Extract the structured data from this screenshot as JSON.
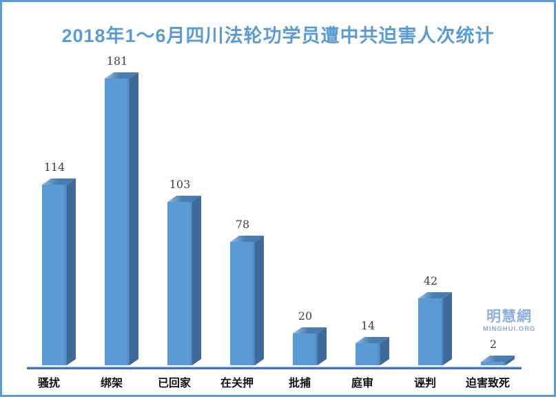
{
  "title_text": "2018年1～6月四川法轮功学员遭中共迫害人次统计",
  "watermark": {
    "cn": "明慧網",
    "en": "MINGHUI.ORG"
  },
  "colors": {
    "border": "#5B9BD5",
    "title": "#5B9BD5",
    "bar_front": "#5B9BD5",
    "bar_top": "#4A7CAF",
    "bar_side": "#3E6A99",
    "axis": "#4472C4",
    "value_label": "#404040",
    "category_label": "#111111",
    "watermark_cn": "#8FAFDF",
    "watermark_en": "#87A7D4"
  },
  "chart_data": {
    "type": "bar",
    "style": "3d",
    "title": "2018年1～6月四川法轮功学员遭中共迫害人次统计",
    "categories": [
      "骚扰",
      "绑架",
      "已回家",
      "在关押",
      "批捕",
      "庭审",
      "诬判",
      "迫害致死"
    ],
    "values": [
      114,
      181,
      103,
      78,
      20,
      14,
      42,
      2
    ],
    "xlabel": "",
    "ylabel": "",
    "ylim": [
      0,
      190
    ],
    "grid": false,
    "legend": false,
    "value_labels_shown": true,
    "axis_line_shown": true
  }
}
